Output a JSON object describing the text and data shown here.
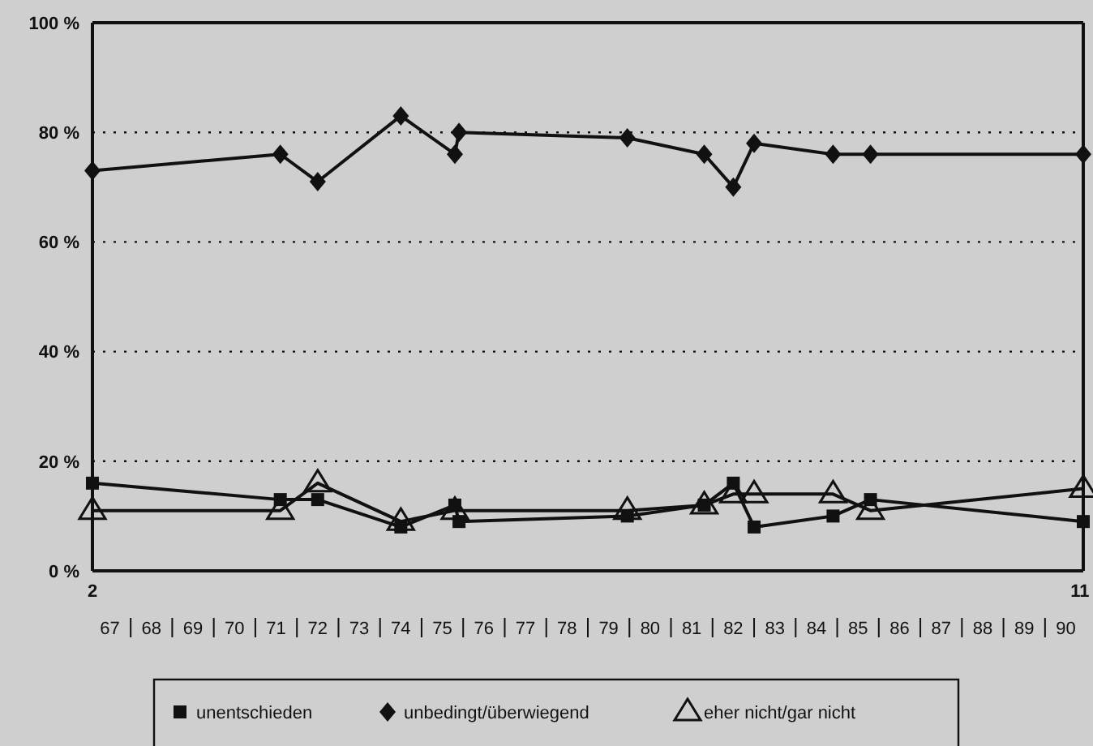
{
  "chart_data": {
    "type": "line",
    "x": [
      66.58,
      71.1,
      72.0,
      74.0,
      75.3,
      75.4,
      79.45,
      81.3,
      82.0,
      82.5,
      84.4,
      85.3,
      90.42
    ],
    "series": [
      {
        "name": "unentschieden",
        "color": "#111111",
        "marker": "square",
        "values": [
          16,
          13,
          13,
          8,
          12,
          9,
          10,
          12,
          16,
          8,
          10,
          13,
          9
        ]
      },
      {
        "name": "unbedingt/überwiegend",
        "color": "#111111",
        "marker": "diamond",
        "values": [
          73,
          76,
          71,
          83,
          76,
          80,
          79,
          76,
          70,
          78,
          76,
          76,
          76
        ]
      },
      {
        "name": "eher nicht/gar nicht",
        "color": "#111111",
        "marker": "triangle",
        "values": [
          11,
          11,
          16,
          9,
          11,
          null,
          11,
          12,
          14,
          14,
          14,
          11,
          15
        ]
      }
    ],
    "xlim": [
      66.58,
      90.42
    ],
    "xticks": [
      67,
      68,
      69,
      70,
      71,
      72,
      73,
      74,
      75,
      76,
      77,
      78,
      79,
      80,
      81,
      82,
      83,
      84,
      85,
      86,
      87,
      88,
      89,
      90
    ],
    "annotations": [
      "2",
      "11"
    ],
    "ylim": [
      0,
      100
    ],
    "yticks": [
      {
        "value": 0,
        "label": "0 %"
      },
      {
        "value": 20,
        "label": "20 %"
      },
      {
        "value": 40,
        "label": "40 %"
      },
      {
        "value": 60,
        "label": "60 %"
      },
      {
        "value": 80,
        "label": "80 %"
      },
      {
        "value": 100,
        "label": "100 %"
      }
    ],
    "grid": "y",
    "legend": "bottom",
    "line_style": "solid"
  }
}
